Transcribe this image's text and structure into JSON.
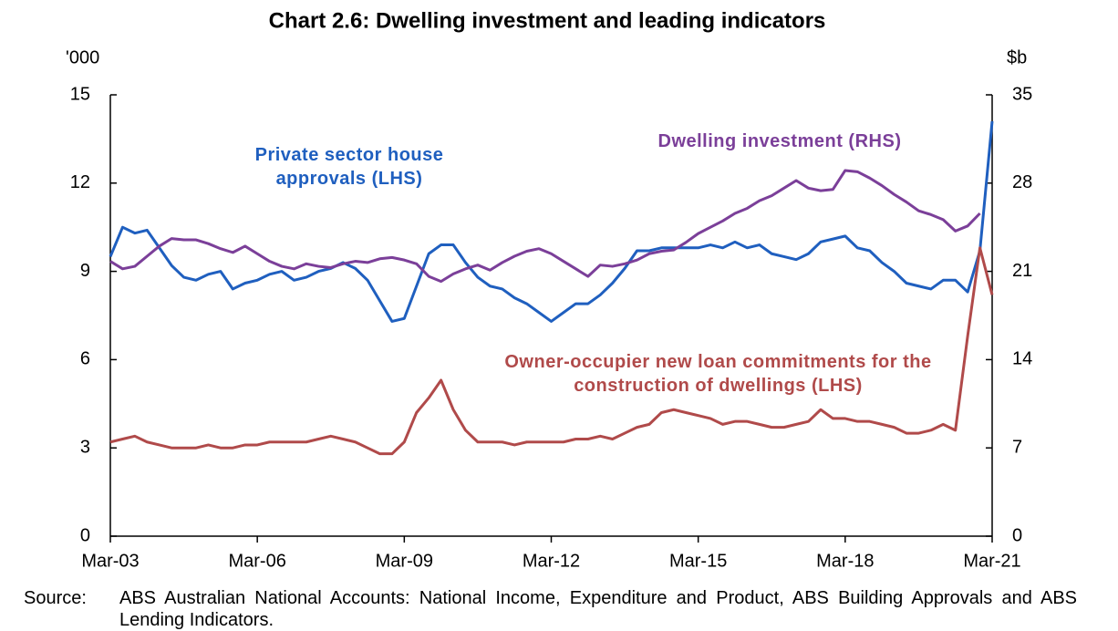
{
  "chart_data": {
    "type": "line",
    "title": "Chart 2.6: Dwelling investment and leading indicators",
    "y_label": "'000",
    "y2_label": "$b",
    "categories": [
      "Mar-03",
      null,
      null,
      null,
      null,
      null,
      null,
      null,
      null,
      null,
      null,
      null,
      "Mar-06",
      null,
      null,
      null,
      null,
      null,
      null,
      null,
      null,
      null,
      null,
      null,
      "Mar-09",
      null,
      null,
      null,
      null,
      null,
      null,
      null,
      null,
      null,
      null,
      null,
      "Mar-12",
      null,
      null,
      null,
      null,
      null,
      null,
      null,
      null,
      null,
      null,
      null,
      "Mar-15",
      null,
      null,
      null,
      null,
      null,
      null,
      null,
      null,
      null,
      null,
      null,
      "Mar-18",
      null,
      null,
      null,
      null,
      null,
      null,
      null,
      null,
      null,
      null,
      null,
      "Mar-21"
    ],
    "ylim": [
      0,
      15
    ],
    "yticks": [
      0,
      3,
      6,
      9,
      12,
      15
    ],
    "y2lim": [
      0,
      35
    ],
    "y2ticks": [
      0,
      7,
      14,
      21,
      28,
      35
    ],
    "series": [
      {
        "name": "Private sector house approvals (LHS)",
        "color": "#1f5fbf",
        "axis": "y",
        "values": [
          9.5,
          10.5,
          10.3,
          10.4,
          9.8,
          9.2,
          8.8,
          8.7,
          8.9,
          9.0,
          8.4,
          8.6,
          8.7,
          8.9,
          9.0,
          8.7,
          8.8,
          9.0,
          9.1,
          9.3,
          9.1,
          8.7,
          8.0,
          7.3,
          7.4,
          8.5,
          9.6,
          9.9,
          9.9,
          9.3,
          8.8,
          8.5,
          8.4,
          8.1,
          7.9,
          7.6,
          7.3,
          7.6,
          7.9,
          7.9,
          8.2,
          8.6,
          9.1,
          9.7,
          9.7,
          9.8,
          9.8,
          9.8,
          9.8,
          9.9,
          9.8,
          10.0,
          9.8,
          9.9,
          9.6,
          9.5,
          9.4,
          9.6,
          10.0,
          10.1,
          10.2,
          9.8,
          9.7,
          9.3,
          9.0,
          8.6,
          8.5,
          8.4,
          8.7,
          8.7,
          8.3,
          9.7,
          14.1
        ]
      },
      {
        "name": "Dwelling investment (RHS)",
        "color": "#7b3f99",
        "axis": "y2",
        "values": [
          21.8,
          21.2,
          21.4,
          22.2,
          23.0,
          23.6,
          23.5,
          23.5,
          23.2,
          22.8,
          22.5,
          23.0,
          22.4,
          21.8,
          21.4,
          21.2,
          21.6,
          21.4,
          21.3,
          21.6,
          21.8,
          21.7,
          22.0,
          22.1,
          21.9,
          21.6,
          20.6,
          20.2,
          20.8,
          21.2,
          21.5,
          21.1,
          21.7,
          22.2,
          22.6,
          22.8,
          22.4,
          21.8,
          21.2,
          20.6,
          21.5,
          21.4,
          21.6,
          21.9,
          22.4,
          22.6,
          22.7,
          23.3,
          24.0,
          24.5,
          25.0,
          25.6,
          26.0,
          26.6,
          27.0,
          27.6,
          28.2,
          27.6,
          27.4,
          27.5,
          29.0,
          28.9,
          28.4,
          27.8,
          27.1,
          26.5,
          25.8,
          25.5,
          25.1,
          24.2,
          24.6,
          25.6,
          null
        ]
      },
      {
        "name": "Owner-occupier new loan commitments for the construction of dwellings (LHS)",
        "color": "#b04a4a",
        "axis": "y",
        "values": [
          3.2,
          3.3,
          3.4,
          3.2,
          3.1,
          3.0,
          3.0,
          3.0,
          3.1,
          3.0,
          3.0,
          3.1,
          3.1,
          3.2,
          3.2,
          3.2,
          3.2,
          3.3,
          3.4,
          3.3,
          3.2,
          3.0,
          2.8,
          2.8,
          3.2,
          4.2,
          4.7,
          5.3,
          4.3,
          3.6,
          3.2,
          3.2,
          3.2,
          3.1,
          3.2,
          3.2,
          3.2,
          3.2,
          3.3,
          3.3,
          3.4,
          3.3,
          3.5,
          3.7,
          3.8,
          4.2,
          4.3,
          4.2,
          4.1,
          4.0,
          3.8,
          3.9,
          3.9,
          3.8,
          3.7,
          3.7,
          3.8,
          3.9,
          4.3,
          4.0,
          4.0,
          3.9,
          3.9,
          3.8,
          3.7,
          3.5,
          3.5,
          3.6,
          3.8,
          3.6,
          6.8,
          9.8,
          8.2
        ]
      }
    ],
    "source_label": "Source:",
    "source": "ABS Australian National Accounts: National Income, Expenditure and Product, ABS Building Approvals and ABS Lending Indicators."
  }
}
